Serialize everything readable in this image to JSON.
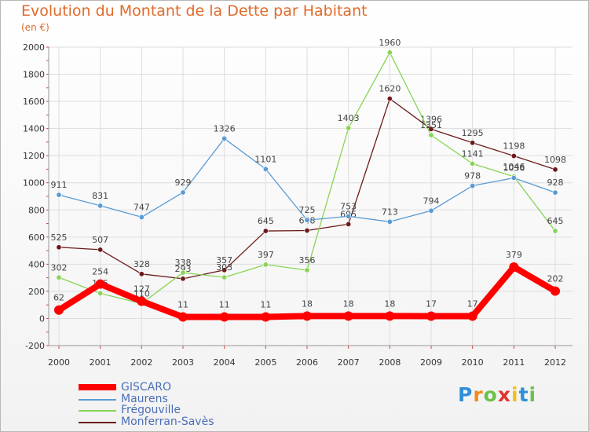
{
  "header": {
    "title": "Evolution du Montant de la Dette par Habitant",
    "unit": "(en €)"
  },
  "chart_data": {
    "type": "line",
    "title": "Evolution du Montant de la Dette par Habitant",
    "ylabel": "(en €)",
    "xlabel": "",
    "ylim": [
      -200,
      2000
    ],
    "yticks": [
      -200,
      0,
      200,
      400,
      600,
      800,
      1000,
      1200,
      1400,
      1600,
      1800,
      2000
    ],
    "x": [
      "2000",
      "2001",
      "2002",
      "2003",
      "2004",
      "2005",
      "2006",
      "2007",
      "2008",
      "2009",
      "2010",
      "2011",
      "2012"
    ],
    "grid": true,
    "legend": "bottom-left",
    "series": [
      {
        "name": "Monferran-Savès",
        "color": "#6b1a1a",
        "values": [
          525,
          507,
          328,
          293,
          357,
          645,
          648,
          695,
          1620,
          1396,
          1295,
          1198,
          1098
        ]
      },
      {
        "name": "Frégouville",
        "color": "#88d454",
        "values": [
          302,
          185,
          110,
          338,
          303,
          397,
          356,
          1403,
          1960,
          1351,
          1141,
          1046,
          645
        ]
      },
      {
        "name": "Maurens",
        "color": "#5a9bd4",
        "values": [
          911,
          831,
          747,
          929,
          1326,
          1101,
          725,
          753,
          713,
          794,
          978,
          1036,
          928
        ]
      },
      {
        "name": "GISCARO",
        "color": "#ff0000",
        "values": [
          62,
          254,
          127,
          11,
          11,
          11,
          18,
          18,
          18,
          17,
          17,
          379,
          202
        ]
      }
    ]
  },
  "legend": [
    {
      "name": "GISCARO",
      "color": "#ff0000"
    },
    {
      "name": "Maurens",
      "color": "#5a9bd4"
    },
    {
      "name": "Frégouville",
      "color": "#88d454"
    },
    {
      "name": "Monferran-Savès",
      "color": "#6b1a1a"
    }
  ],
  "logo": {
    "letters": [
      "P",
      "r",
      "o",
      "x",
      "i",
      "t",
      "i"
    ],
    "colors": [
      "#2f8fd8",
      "#f08a1c",
      "#6cc04a",
      "#e0342c",
      "#f0c020",
      "#2f8fd8",
      "#6cc04a"
    ]
  }
}
